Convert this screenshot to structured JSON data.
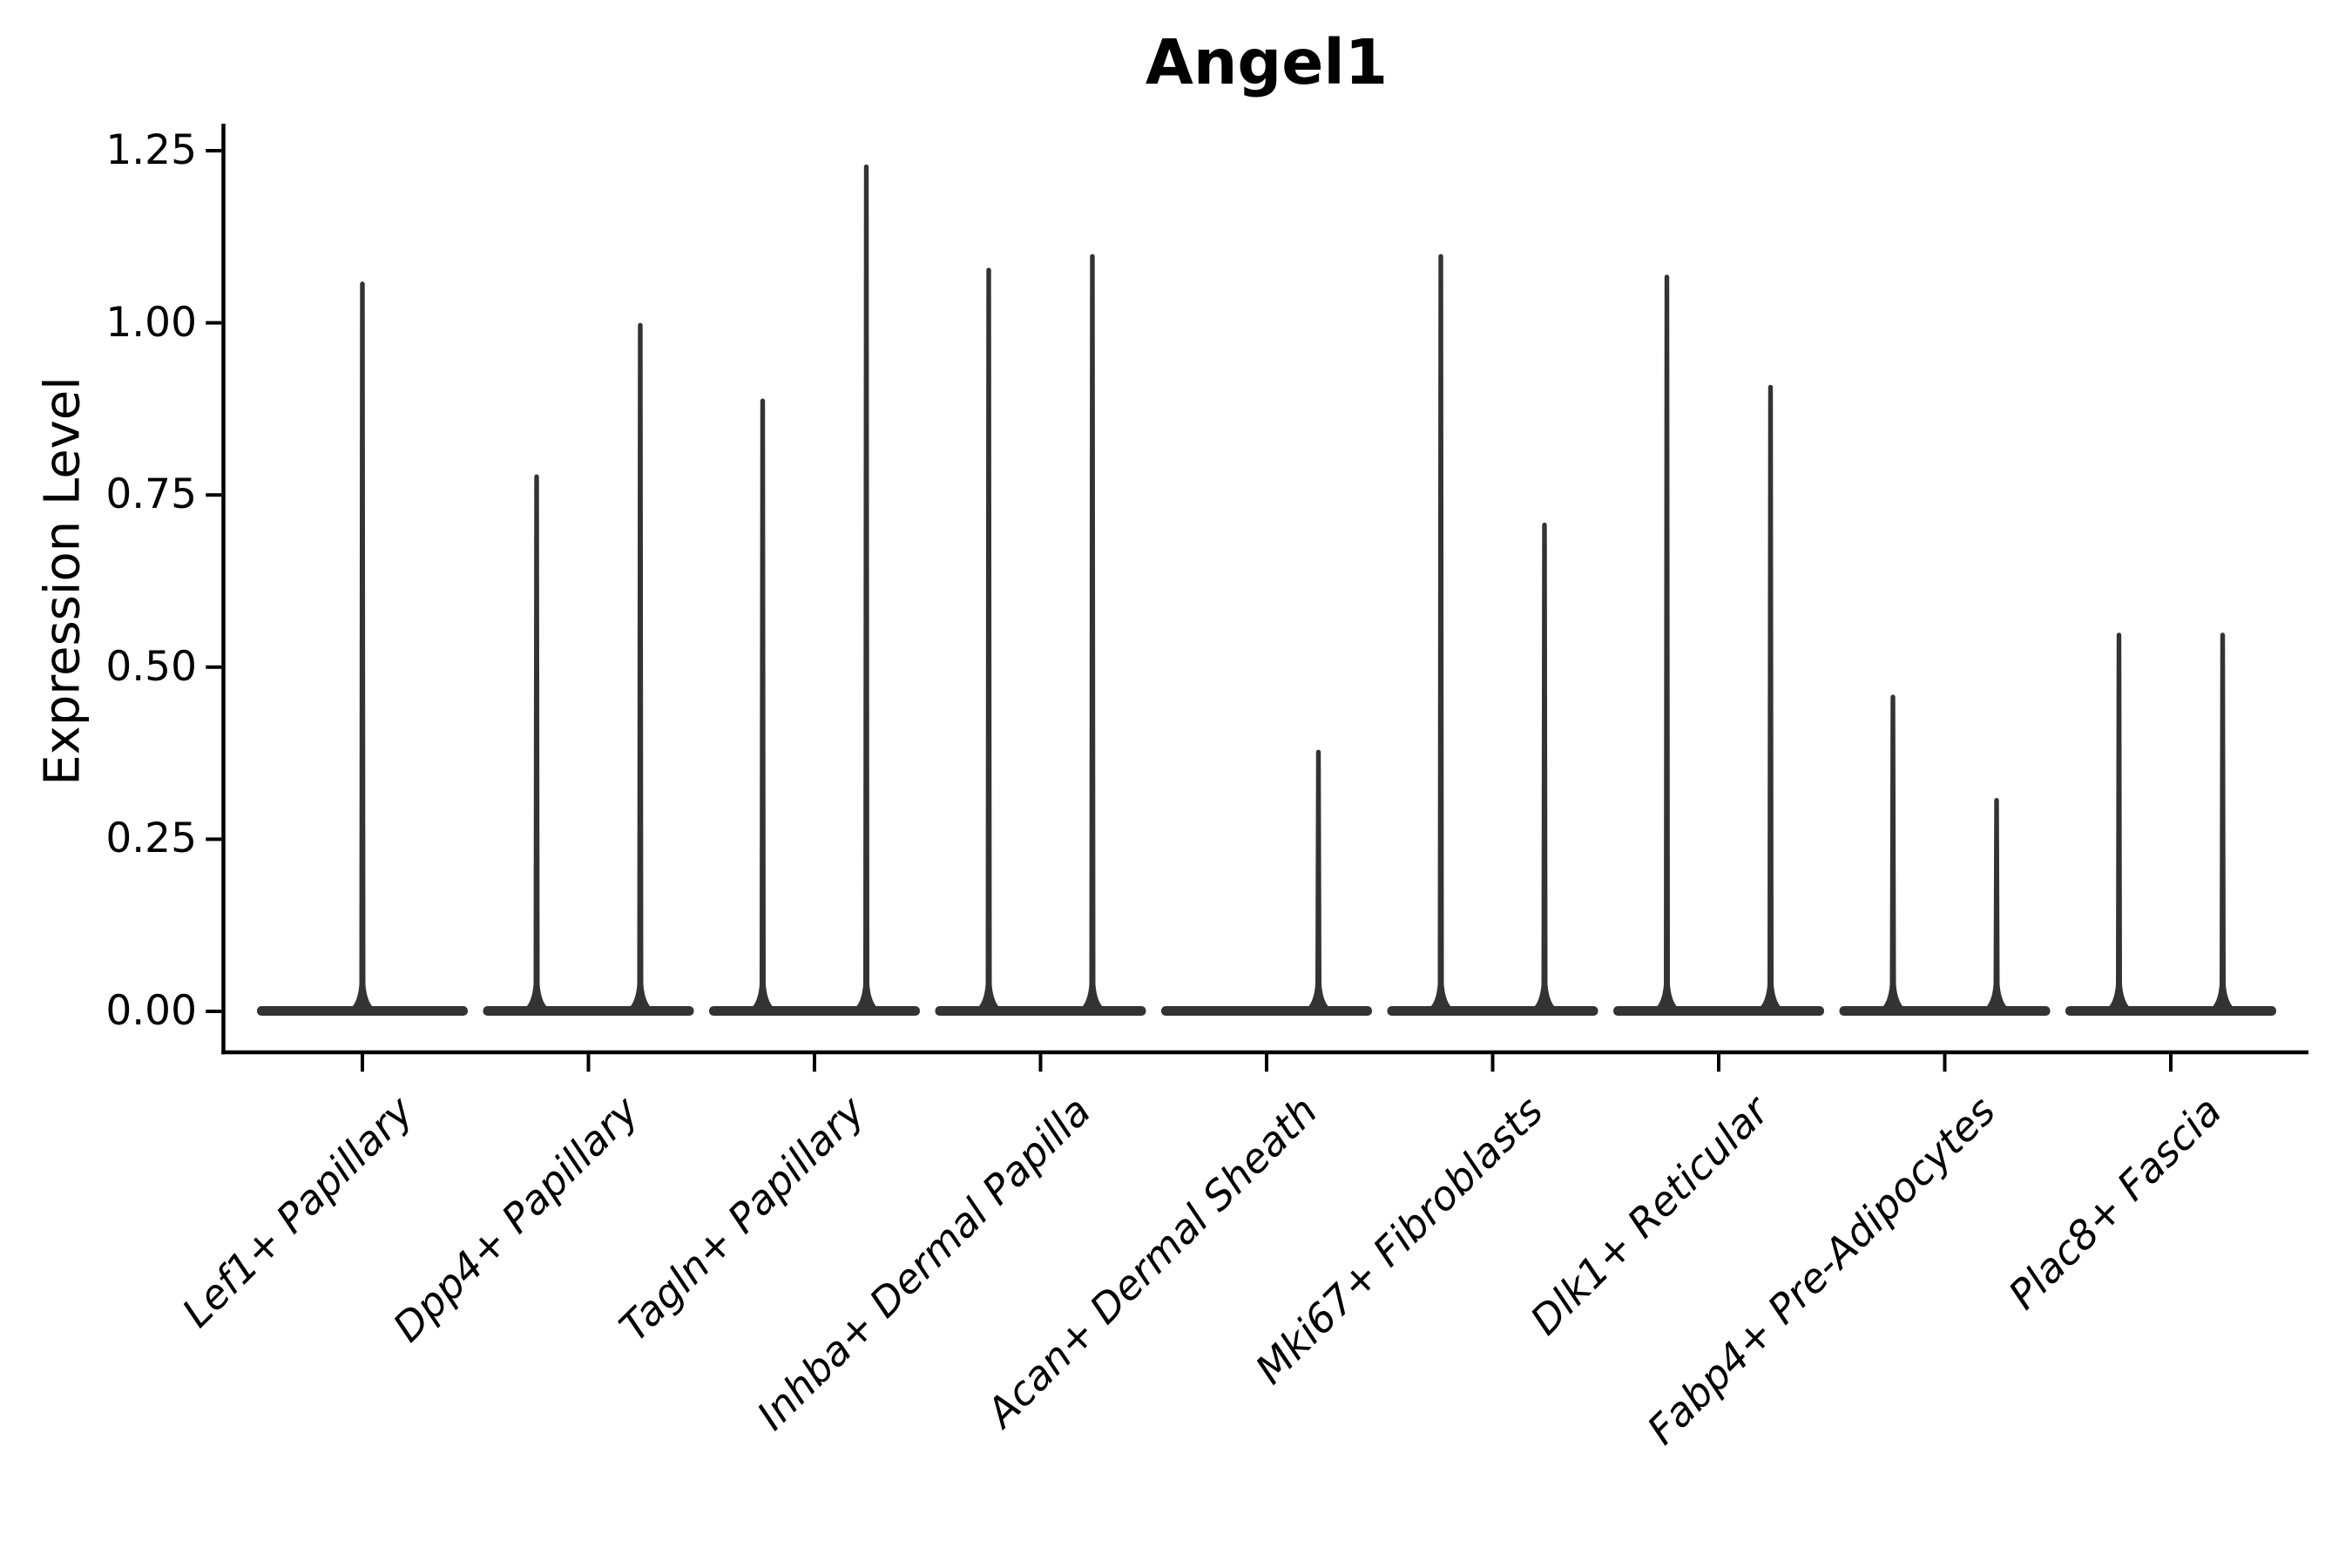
{
  "title": "Angel1",
  "y_axis": {
    "label": "Expression Level",
    "tick_labels": [
      "0.00",
      "0.25",
      "0.50",
      "0.75",
      "1.00",
      "1.25"
    ],
    "tick_values": [
      0,
      0.25,
      0.5,
      0.75,
      1.0,
      1.25
    ]
  },
  "x_axis": {
    "categories": [
      "Lef1+ Papillary",
      "Dpp4+ Papillary",
      "Tagln+ Papillary",
      "Inhba+ Dermal Papilla",
      "Acan+ Dermal Sheath",
      "Mki67+ Fibroblasts",
      "Dlk1+ Reticular",
      "Fabp4+ Pre-Adipocytes",
      "Plac8+ Fascia"
    ]
  },
  "colors": {
    "violin": "#333333",
    "axis": "#000000",
    "text": "#000000",
    "background": "#ffffff"
  },
  "chart_data": {
    "type": "violin",
    "title": "Angel1",
    "xlabel": "",
    "ylabel": "Expression Level",
    "ylim": [
      0,
      1.25
    ],
    "grid": false,
    "legend": null,
    "style_note": "each violin collapses to a flat dense mass at 0 with a thin needle up to its max expression value",
    "categories": [
      "Lef1+ Papillary",
      "Dpp4+ Papillary",
      "Tagln+ Papillary",
      "Inhba+ Dermal Papilla",
      "Acan+ Dermal Sheath",
      "Mki67+ Fibroblasts",
      "Dlk1+ Reticular",
      "Fabp4+ Pre-Adipocytes",
      "Plac8+ Fascia"
    ],
    "violins": [
      {
        "category": "Lef1+ Papillary",
        "spikes": [
          {
            "position": "center",
            "max": 1.06
          }
        ]
      },
      {
        "category": "Dpp4+ Papillary",
        "spikes": [
          {
            "position": "left",
            "max": 0.78
          },
          {
            "position": "right",
            "max": 1.0
          }
        ]
      },
      {
        "category": "Tagln+ Papillary",
        "spikes": [
          {
            "position": "left",
            "max": 0.89
          },
          {
            "position": "right",
            "max": 1.23
          }
        ]
      },
      {
        "category": "Inhba+ Dermal Papilla",
        "spikes": [
          {
            "position": "left",
            "max": 1.08
          },
          {
            "position": "right",
            "max": 1.1
          }
        ]
      },
      {
        "category": "Acan+ Dermal Sheath",
        "spikes": [
          {
            "position": "left",
            "max": 0.0
          },
          {
            "position": "right",
            "max": 0.38
          }
        ]
      },
      {
        "category": "Mki67+ Fibroblasts",
        "spikes": [
          {
            "position": "left",
            "max": 1.1
          },
          {
            "position": "right",
            "max": 0.71
          }
        ]
      },
      {
        "category": "Dlk1+ Reticular",
        "spikes": [
          {
            "position": "left",
            "max": 1.07
          },
          {
            "position": "right",
            "max": 0.91
          }
        ]
      },
      {
        "category": "Fabp4+ Pre-Adipocytes",
        "spikes": [
          {
            "position": "left",
            "max": 0.46
          },
          {
            "position": "right",
            "max": 0.31
          }
        ]
      },
      {
        "category": "Plac8+ Fascia",
        "spikes": [
          {
            "position": "left",
            "max": 0.55
          },
          {
            "position": "right",
            "max": 0.55
          }
        ]
      }
    ]
  }
}
